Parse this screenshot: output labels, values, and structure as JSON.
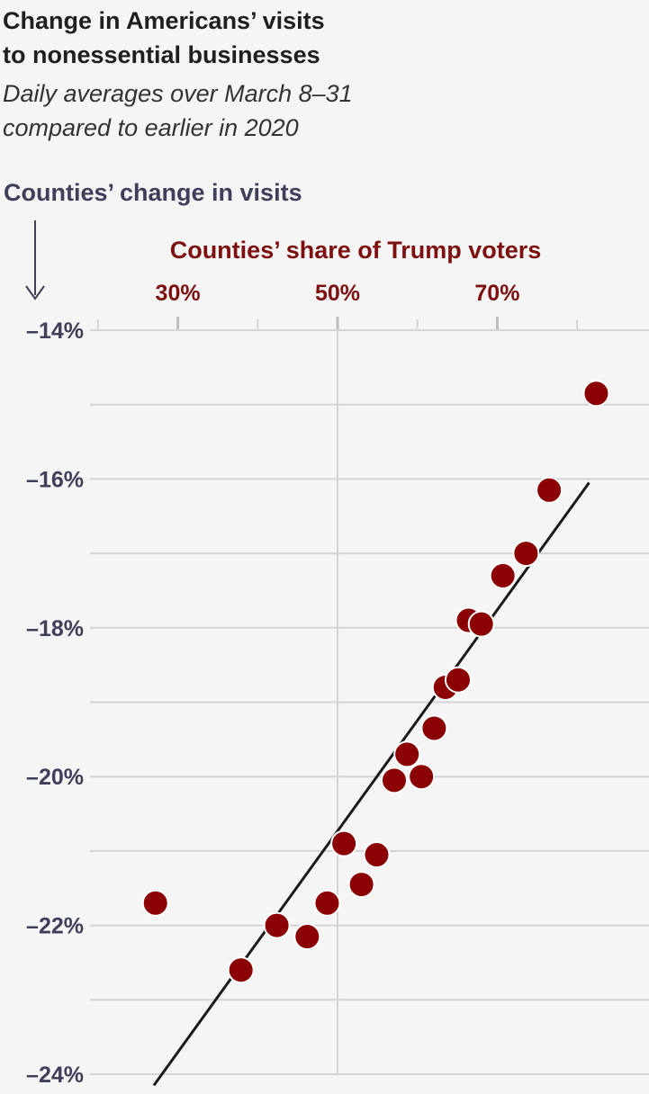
{
  "header": {
    "title_line1": "Change in Americans’ visits",
    "title_line2": "to nonessential businesses",
    "subtitle_line1": "Daily averages over March 8–31",
    "subtitle_line2": "compared to earlier in 2020"
  },
  "colors": {
    "point": "#8b0000",
    "point_stroke": "#ffffff",
    "x_title": "#7d0f0f",
    "y_title": "#3f3f5a",
    "y_ticks": "#3f3f5a",
    "grid": "#d4d4d4",
    "trend": "#1a1a1a"
  },
  "chart_data": {
    "type": "scatter",
    "title": "Change in Americans’ visits to nonessential businesses",
    "xlabel": "Counties’ share of Trump voters",
    "ylabel": "Counties’ change in visits",
    "xlim": [
      19,
      89
    ],
    "ylim": [
      -24,
      -14
    ],
    "x_ticks": [
      {
        "value": 30,
        "label": "30%"
      },
      {
        "value": 50,
        "label": "50%"
      },
      {
        "value": 70,
        "label": "70%"
      }
    ],
    "x_minor_ticks": [
      20,
      30,
      40,
      50,
      60,
      70,
      80
    ],
    "y_ticks": [
      {
        "value": -14,
        "label": "–14%"
      },
      {
        "value": -16,
        "label": "–16%"
      },
      {
        "value": -18,
        "label": "–18%"
      },
      {
        "value": -20,
        "label": "–20%"
      },
      {
        "value": -22,
        "label": "–22%"
      },
      {
        "value": -24,
        "label": "–24%"
      }
    ],
    "y_grid": [
      -14,
      -15,
      -16,
      -17,
      -18,
      -19,
      -20,
      -21,
      -22,
      -23,
      -24
    ],
    "x_grid": [
      50
    ],
    "points": [
      {
        "x": 27.2,
        "y": -21.7
      },
      {
        "x": 37.9,
        "y": -22.6
      },
      {
        "x": 42.4,
        "y": -22.0
      },
      {
        "x": 46.2,
        "y": -22.15
      },
      {
        "x": 48.7,
        "y": -21.7
      },
      {
        "x": 50.8,
        "y": -20.9
      },
      {
        "x": 53.0,
        "y": -21.45
      },
      {
        "x": 54.9,
        "y": -21.05
      },
      {
        "x": 57.1,
        "y": -20.05
      },
      {
        "x": 58.7,
        "y": -19.7
      },
      {
        "x": 60.5,
        "y": -20.0
      },
      {
        "x": 62.1,
        "y": -19.35
      },
      {
        "x": 63.5,
        "y": -18.8
      },
      {
        "x": 65.1,
        "y": -18.7
      },
      {
        "x": 66.4,
        "y": -17.9
      },
      {
        "x": 68.0,
        "y": -17.95
      },
      {
        "x": 70.7,
        "y": -17.3
      },
      {
        "x": 73.6,
        "y": -17.0
      },
      {
        "x": 76.5,
        "y": -16.15
      },
      {
        "x": 82.4,
        "y": -14.85
      }
    ],
    "trendline": [
      {
        "x": 27.0,
        "y": -24.15
      },
      {
        "x": 81.5,
        "y": -16.05
      }
    ]
  }
}
